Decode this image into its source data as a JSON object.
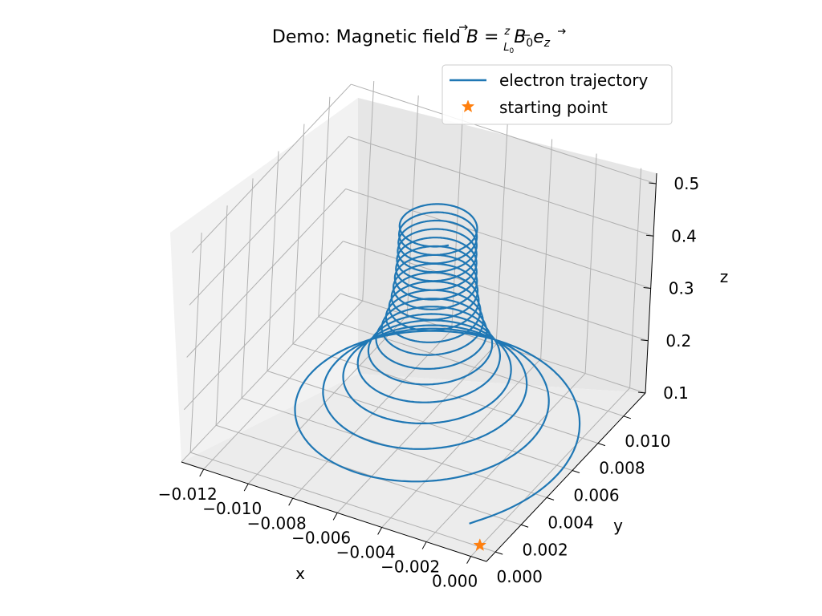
{
  "chart_data": {
    "type": "line",
    "projection": "3d",
    "title": {
      "prefix": "Demo: Magnetic field ",
      "lhs": "B",
      "rel": " = ",
      "frac_num": "z",
      "frac_den": "L",
      "frac_den_sub": "0",
      "coef": "B",
      "coef_sub": "0",
      "vec": "e",
      "vec_sub": "z"
    },
    "xlabel": "x",
    "ylabel": "y",
    "zlabel": "z",
    "xlim": [
      -0.013,
      0.0007
    ],
    "ylim": [
      -0.0007,
      0.0117
    ],
    "zlim": [
      0.1,
      0.52
    ],
    "xticks": [
      "−0.012",
      "−0.010",
      "−0.008",
      "−0.006",
      "−0.004",
      "−0.002",
      "0.000"
    ],
    "xtick_values": [
      -0.012,
      -0.01,
      -0.008,
      -0.006,
      -0.004,
      -0.002,
      0.0
    ],
    "yticks": [
      "0.000",
      "0.002",
      "0.004",
      "0.006",
      "0.008",
      "0.010"
    ],
    "ytick_values": [
      0.0,
      0.002,
      0.004,
      0.006,
      0.008,
      0.01
    ],
    "zticks": [
      "0.1",
      "0.2",
      "0.3",
      "0.4",
      "0.5"
    ],
    "ztick_values": [
      0.1,
      0.2,
      0.3,
      0.4,
      0.5
    ],
    "grid": true,
    "legend_position": "upper right",
    "series": [
      {
        "name": "electron trajectory",
        "color": "#1f77b4",
        "kind": "helix",
        "center_x": -0.0055,
        "center_y": 0.0055,
        "start_radius": 0.0062,
        "end_radius": 0.0015,
        "z_start": 0.1,
        "z_end": 0.5,
        "turns": 18
      },
      {
        "name": "starting point",
        "color": "#ff7f0e",
        "kind": "marker",
        "marker": "star",
        "x": 0.0,
        "y": 0.0,
        "z": 0.1
      }
    ]
  }
}
